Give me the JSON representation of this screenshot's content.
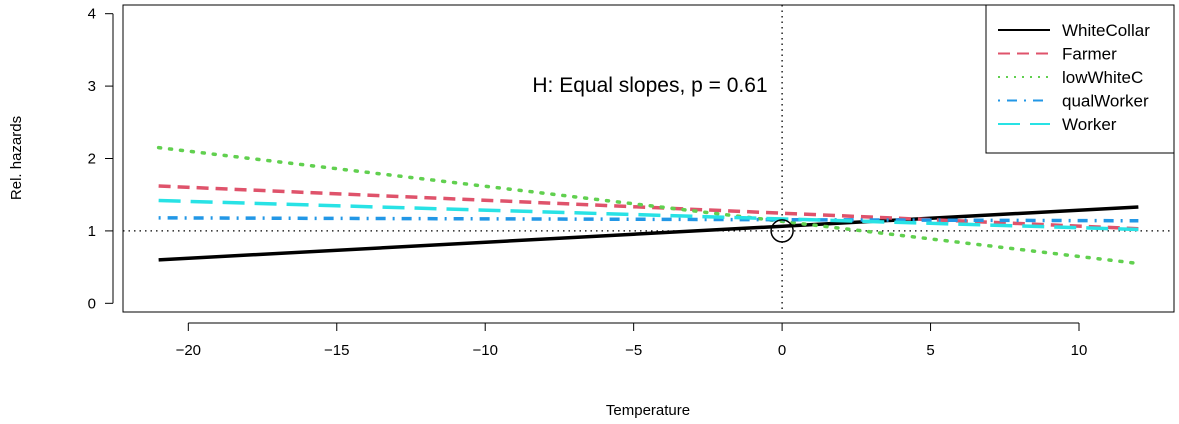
{
  "chart_data": {
    "type": "line",
    "title": "",
    "annotation": "H: Equal slopes, p =  0.61",
    "xlabel": "Temperature",
    "ylabel": "Rel. hazards",
    "xlim": [
      -22.2,
      13.2
    ],
    "ylim": [
      -0.12,
      4.12
    ],
    "x_ticks": [
      -20,
      -15,
      -10,
      -5,
      0,
      5,
      10
    ],
    "x_tick_labels": [
      "−20",
      "−15",
      "−10",
      "−5",
      "0",
      "5",
      "10"
    ],
    "y_ticks": [
      0,
      1,
      2,
      3,
      4
    ],
    "y_tick_labels": [
      "0",
      "1",
      "2",
      "3",
      "4"
    ],
    "reference_lines": {
      "hline_y": 1,
      "vline_x": 0,
      "style": "dotted"
    },
    "reference_point": {
      "x": 0,
      "y": 1,
      "marker": "open-circle"
    },
    "legend_position": "top-right",
    "series": [
      {
        "name": "WhiteCollar",
        "color": "#000000",
        "dash": "solid",
        "x": [
          -21,
          12
        ],
        "y": [
          0.6,
          1.33
        ]
      },
      {
        "name": "Farmer",
        "color": "#DF536B",
        "dash": "dashed",
        "x": [
          -21,
          12
        ],
        "y": [
          1.62,
          1.03
        ]
      },
      {
        "name": "lowWhiteC",
        "color": "#61D04F",
        "dash": "dotted",
        "x": [
          -21,
          12
        ],
        "y": [
          2.15,
          0.55
        ]
      },
      {
        "name": "qualWorker",
        "color": "#2297E6",
        "dash": "dotdash",
        "x": [
          -21,
          12
        ],
        "y": [
          1.18,
          1.14
        ]
      },
      {
        "name": "Worker",
        "color": "#28E2E5",
        "dash": "longdash",
        "x": [
          -21,
          12
        ],
        "y": [
          1.42,
          1.02
        ]
      }
    ]
  }
}
